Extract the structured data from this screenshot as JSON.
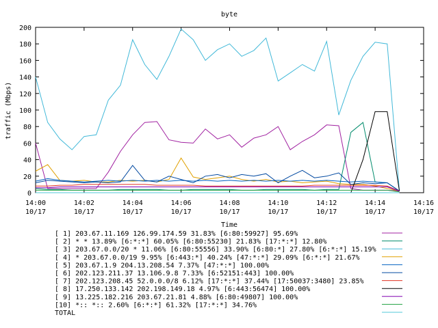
{
  "chart_data": {
    "type": "line",
    "title": "byte",
    "xlabel": "Time",
    "ylabel": "traffic (Mbps)",
    "ylim": [
      0,
      200
    ],
    "yticks": [
      0,
      20,
      40,
      60,
      80,
      100,
      120,
      140,
      160,
      180,
      200
    ],
    "xlim": [
      "14:00",
      "14:16"
    ],
    "x_tick_labels": [
      {
        "time": "14:00",
        "date": "10/17"
      },
      {
        "time": "14:02",
        "date": "10/17"
      },
      {
        "time": "14:04",
        "date": "10/17"
      },
      {
        "time": "14:06",
        "date": "10/17"
      },
      {
        "time": "14:08",
        "date": "10/17"
      },
      {
        "time": "14:10",
        "date": "10/17"
      },
      {
        "time": "14:12",
        "date": "10/17"
      },
      {
        "time": "14:14",
        "date": "10/17"
      },
      {
        "time": "14:16",
        "date": "10/17"
      }
    ],
    "x": [
      "14:00",
      "14:00:30",
      "14:01",
      "14:01:30",
      "14:02",
      "14:02:30",
      "14:03",
      "14:03:30",
      "14:04",
      "14:04:30",
      "14:05",
      "14:05:30",
      "14:06",
      "14:06:30",
      "14:07",
      "14:07:30",
      "14:08",
      "14:08:30",
      "14:09",
      "14:09:30",
      "14:10",
      "14:10:30",
      "14:11",
      "14:11:30",
      "14:12",
      "14:12:30",
      "14:13",
      "14:13:30",
      "14:14",
      "14:14:30",
      "14:15"
    ],
    "grid": false,
    "legend_placement": "bottom",
    "series": [
      {
        "name": "[ 1] 203.67.11.169 126.99.174.59 31.83%  [6:80:59927] 95.69%",
        "color": "#a020a0",
        "values": [
          60,
          5,
          5,
          5,
          5,
          5,
          25,
          50,
          70,
          85,
          86,
          64,
          61,
          60,
          77,
          65,
          70,
          55,
          66,
          70,
          80,
          52,
          62,
          70,
          82,
          81,
          5,
          3,
          3,
          3,
          2
        ]
      },
      {
        "name": "[ 2] * * 13.89%  [6:*:*] 60.05% [6:80:55230] 21.83% [17:*:*] 12.80%",
        "color": "#008b6b",
        "values": [
          5,
          4,
          4,
          3,
          3,
          3,
          3,
          4,
          4,
          4,
          4,
          3,
          3,
          4,
          4,
          4,
          4,
          3,
          3,
          4,
          4,
          4,
          4,
          3,
          4,
          4,
          73,
          85,
          13,
          12,
          2
        ]
      },
      {
        "name": "[ 3] 203.67.0.0/20 * 11.06%  [6:80:55556] 33.90% [6:80:*] 27.80% [6:*:*] 15.19%",
        "color": "#40b8d8",
        "values": [
          140,
          85,
          65,
          52,
          68,
          70,
          112,
          130,
          185,
          155,
          137,
          165,
          198,
          185,
          160,
          173,
          180,
          165,
          172,
          187,
          135,
          145,
          155,
          147,
          183,
          94,
          136,
          165,
          182,
          180,
          2
        ]
      },
      {
        "name": "[ 4] * 203.67.0.0/19 9.95%  [6:443:*] 40.24% [47:*:*] 29.09% [6:*:*] 21.67%",
        "color": "#e0a000",
        "values": [
          26,
          34,
          15,
          14,
          15,
          13,
          13,
          15,
          14,
          15,
          13,
          16,
          42,
          19,
          16,
          18,
          20,
          16,
          14,
          16,
          13,
          14,
          12,
          13,
          14,
          11,
          10,
          10,
          8,
          5,
          2
        ]
      },
      {
        "name": "[ 5] 203.67.1.9 204.13.208.54 7.37%  [47:*:*] 100.00%",
        "color": "#0060c0",
        "values": [
          14,
          17,
          15,
          14,
          13,
          14,
          15,
          14,
          15,
          14,
          15,
          14,
          15,
          14,
          15,
          14,
          15,
          14,
          15,
          14,
          15,
          14,
          15,
          14,
          15,
          14,
          13,
          14,
          13,
          12,
          2
        ]
      },
      {
        "name": "[ 6] 202.123.211.37 13.106.9.8 7.33%  [6:52151:443] 100.00%",
        "color": "#0048a0",
        "values": [
          12,
          15,
          14,
          13,
          12,
          13,
          12,
          13,
          33,
          15,
          13,
          20,
          16,
          12,
          20,
          22,
          18,
          22,
          20,
          23,
          12,
          20,
          27,
          18,
          20,
          24,
          10,
          12,
          11,
          12,
          2
        ]
      },
      {
        "name": "[ 7] 202.123.208.45 52.0.0.0/8 6.12%  [17:*:*] 37.44% [17:50037:3480] 23.85%",
        "color": "#e03020",
        "values": [
          8,
          8,
          9,
          9,
          10,
          10,
          10,
          10,
          10,
          10,
          9,
          9,
          9,
          9,
          8,
          8,
          8,
          8,
          8,
          8,
          8,
          8,
          8,
          9,
          9,
          9,
          9,
          9,
          9,
          8,
          2
        ]
      },
      {
        "name": "[ 8] 17.250.133.142 202.198.149.18 4.97%  [6:443:56474] 100.00%",
        "color": "#000000",
        "values": [
          0,
          0,
          0,
          0,
          0,
          0,
          0,
          0,
          0,
          0,
          0,
          0,
          0,
          0,
          0,
          0,
          0,
          0,
          0,
          0,
          0,
          0,
          0,
          0,
          0,
          0,
          0,
          40,
          98,
          98,
          2
        ]
      },
      {
        "name": "[ 9] 13.225.182.216 203.67.21.81 4.88%  [6:80:49807] 100.00%",
        "color": "#8000b0",
        "values": [
          6,
          6,
          7,
          7,
          7,
          7,
          7,
          7,
          7,
          7,
          7,
          7,
          7,
          7,
          7,
          7,
          7,
          7,
          7,
          7,
          7,
          7,
          7,
          7,
          7,
          7,
          7,
          7,
          7,
          7,
          2
        ]
      },
      {
        "name": "[10] *:: *:: 2.60%  [6:*:*] 61.32% [17:*:*] 34.76%",
        "color": "#20a040",
        "values": [
          3,
          3,
          3,
          3,
          3,
          3,
          3,
          3,
          3,
          3,
          3,
          3,
          3,
          3,
          3,
          3,
          3,
          3,
          3,
          3,
          3,
          3,
          3,
          3,
          3,
          3,
          3,
          3,
          3,
          3,
          1
        ]
      },
      {
        "name": "TOTAL",
        "color": "#50c8d8",
        "values": [
          0,
          0,
          0,
          0,
          0,
          0,
          0,
          0,
          0,
          0,
          0,
          0,
          0,
          0,
          0,
          0,
          0,
          0,
          0,
          0,
          0,
          0,
          0,
          0,
          0,
          0,
          0,
          0,
          0,
          0,
          0
        ]
      }
    ]
  }
}
